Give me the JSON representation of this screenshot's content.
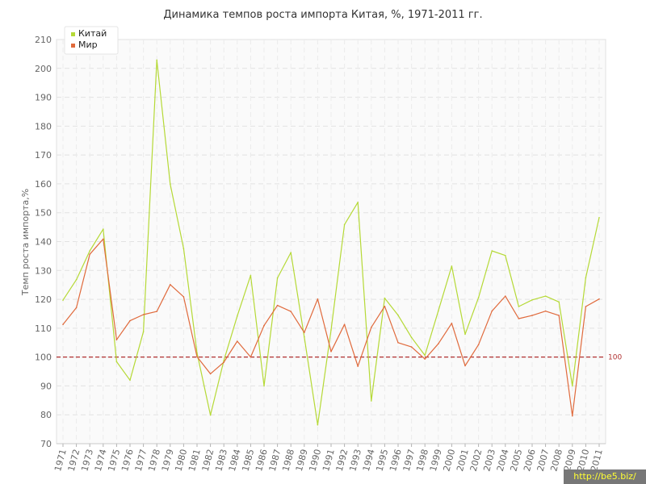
{
  "chart_data": {
    "type": "line",
    "title": "Динамика темпов роста импорта Китая, %, 1971-2011 гг.",
    "ylabel": "Темп роста импорта,%",
    "xlabel": "",
    "ylim": [
      70,
      210
    ],
    "yticks": [
      70,
      80,
      90,
      100,
      110,
      120,
      130,
      140,
      150,
      160,
      170,
      180,
      190,
      200,
      210
    ],
    "grid": true,
    "legend_position": "top-left",
    "reference_line": {
      "value": 100,
      "label": "100",
      "color": "#b03030"
    },
    "x": [
      "1971",
      "1972",
      "1973",
      "1974",
      "1975",
      "1976",
      "1977",
      "1978",
      "1979",
      "1980",
      "1981",
      "1982",
      "1983",
      "1984",
      "1985",
      "1986",
      "1987",
      "1988",
      "1989",
      "1990",
      "1991",
      "1992",
      "1993",
      "1994",
      "1995",
      "1996",
      "1997",
      "1998",
      "1999",
      "2000",
      "2001",
      "2002",
      "2003",
      "2004",
      "2005",
      "2006",
      "2007",
      "2008",
      "2009",
      "2010",
      "2011"
    ],
    "series": [
      {
        "name": "Китай",
        "color": "#b5d936",
        "values": [
          119.7,
          126.8,
          136.8,
          144.3,
          98.4,
          92,
          108.8,
          202.9,
          159.9,
          137.6,
          101.4,
          79.9,
          98.8,
          114.2,
          128.3,
          90,
          127.4,
          136.2,
          107,
          76.5,
          109.4,
          145.9,
          153.6,
          84.8,
          120.4,
          114.5,
          106.8,
          100.6,
          116,
          131.5,
          107.9,
          120.6,
          136.8,
          135.2,
          117.5,
          119.8,
          121.1,
          119.1,
          90,
          127.5,
          148.3
        ]
      },
      {
        "name": "Мир",
        "color": "#e06a3c",
        "values": [
          111.3,
          117.1,
          135.6,
          140.9,
          106,
          112.6,
          114.7,
          115.8,
          125.1,
          120.9,
          100.1,
          94.2,
          98.2,
          105.5,
          100,
          110.9,
          117.9,
          115.8,
          108.5,
          120.1,
          101.9,
          111.3,
          96.8,
          110.3,
          117.6,
          105,
          103.5,
          99.3,
          104.6,
          111.7,
          97,
          104.3,
          115.9,
          121.1,
          113.3,
          114.4,
          115.9,
          114.4,
          79.6,
          117.5,
          120.1
        ]
      }
    ]
  },
  "watermark": "http://be5.biz/"
}
